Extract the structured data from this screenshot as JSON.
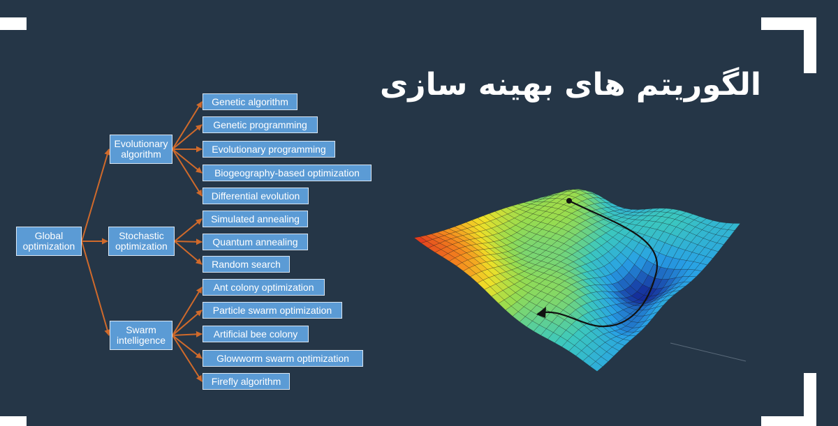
{
  "title": "الگوریتم های بهینه سازی",
  "colors": {
    "background": "#253647",
    "node_fill": "#5b9bd5",
    "arrow": "#d06a2b",
    "frame": "#ffffff"
  },
  "tree": {
    "root": "Global\noptimization",
    "groups": [
      {
        "label": "Evolutionary\nalgorithm",
        "children": [
          "Genetic algorithm",
          "Genetic programming",
          "Evolutionary programming",
          "Biogeography-based optimization",
          "Differential evolution"
        ]
      },
      {
        "label": "Stochastic\noptimization",
        "children": [
          "Simulated annealing",
          "Quantum annealing",
          "Random search"
        ]
      },
      {
        "label": "Swarm\nintelligence",
        "children": [
          "Ant colony optimization",
          "Particle swarm optimization",
          "Artificial bee colony",
          "Glowworm swarm optimization",
          "Firefly algorithm"
        ]
      }
    ]
  }
}
